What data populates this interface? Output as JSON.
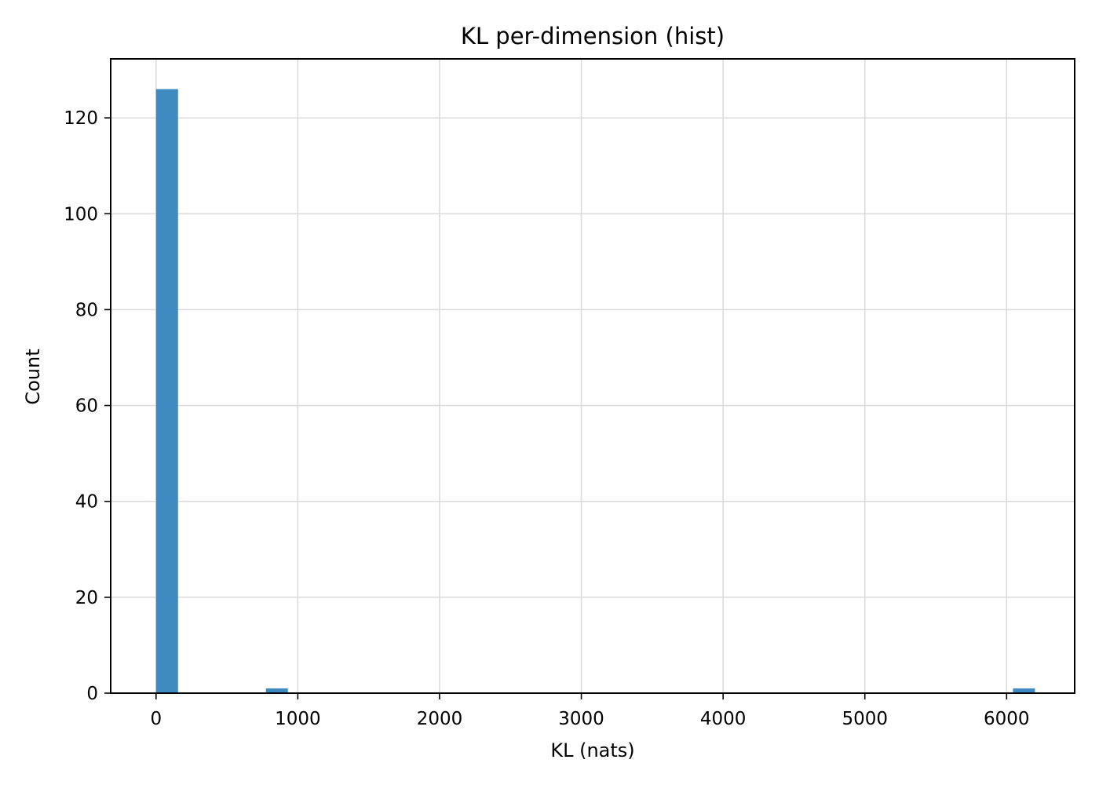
{
  "chart_data": {
    "type": "bar",
    "title": "KL per-dimension (hist)",
    "xlabel": "KL (nats)",
    "ylabel": "Count",
    "xlim": [
      -320,
      6480
    ],
    "ylim": [
      0,
      132.3
    ],
    "xticks": [
      0,
      1000,
      2000,
      3000,
      4000,
      5000,
      6000
    ],
    "xtick_labels": [
      "0",
      "1000",
      "2000",
      "3000",
      "4000",
      "5000",
      "6000"
    ],
    "yticks": [
      0,
      20,
      40,
      60,
      80,
      100,
      120
    ],
    "ytick_labels": [
      "0",
      "20",
      "40",
      "60",
      "80",
      "100",
      "120"
    ],
    "bin_width": 155,
    "bins": [
      {
        "x_start": 0,
        "count": 126
      },
      {
        "x_start": 775,
        "count": 1
      },
      {
        "x_start": 6045,
        "count": 1
      }
    ],
    "bar_color": "#3f8bc1",
    "grid": true
  }
}
